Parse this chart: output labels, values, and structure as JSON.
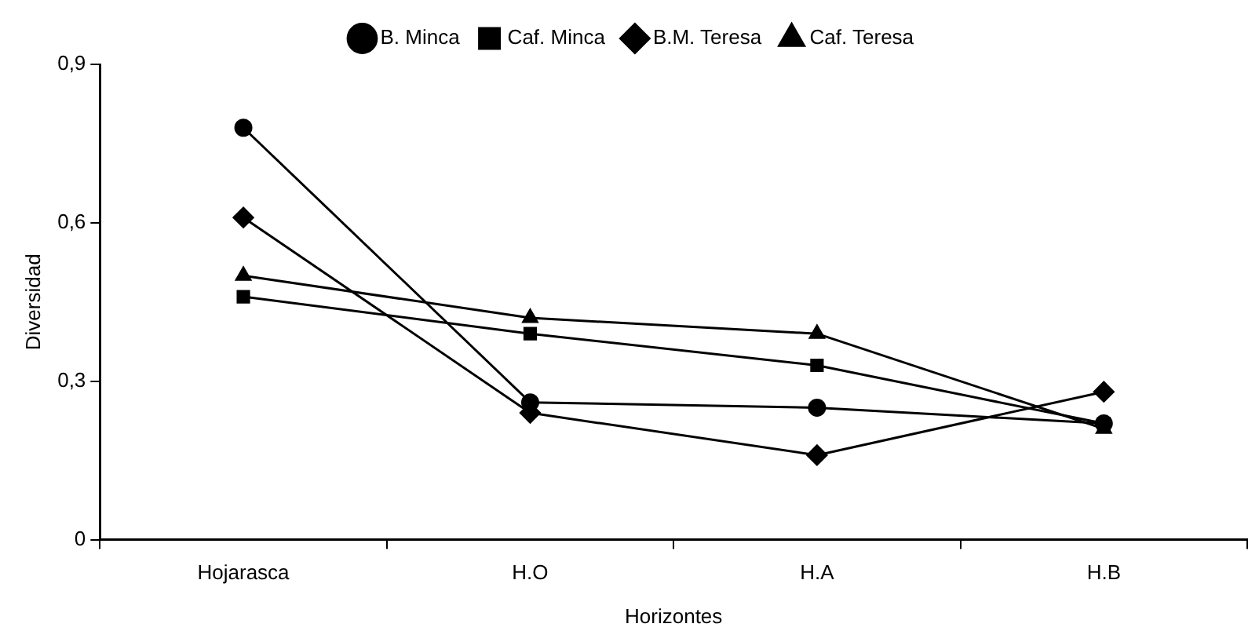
{
  "chart_data": {
    "type": "line",
    "xlabel": "Horizontes",
    "ylabel": "Diversidad",
    "categories": [
      "Hojarasca",
      "H.O",
      "H.A",
      "H.B"
    ],
    "series": [
      {
        "name": "B. Minca",
        "color": "#000000",
        "marker": "circle",
        "values": [
          0.78,
          0.26,
          0.25,
          0.22
        ]
      },
      {
        "name": "Caf. Minca",
        "color": "#000000",
        "marker": "square",
        "values": [
          0.46,
          0.39,
          0.33,
          0.22
        ]
      },
      {
        "name": "B.M. Teresa",
        "color": "#000000",
        "marker": "diamond",
        "values": [
          0.61,
          0.24,
          0.16,
          0.28
        ]
      },
      {
        "name": "Caf. Teresa",
        "color": "#000000",
        "marker": "triangle",
        "values": [
          0.5,
          0.42,
          0.39,
          0.21
        ]
      }
    ],
    "ylim": [
      0,
      0.9
    ],
    "yticks": [
      0,
      {
        "value": 0.3,
        "label": "0,3"
      },
      {
        "value": 0.6,
        "label": "0,6"
      },
      {
        "value": 0.9,
        "label": "0,9"
      }
    ],
    "grid": false,
    "legend": "top",
    "line_style": "solid"
  }
}
